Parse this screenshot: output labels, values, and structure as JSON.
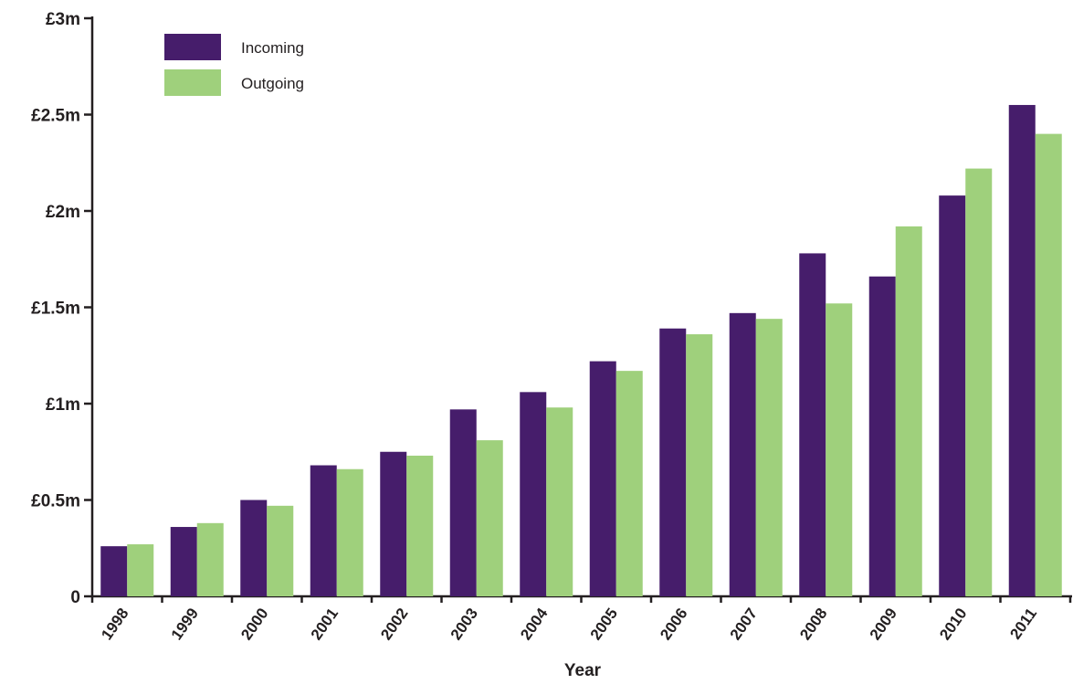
{
  "chart_data": {
    "type": "bar",
    "title": "",
    "xlabel": "Year",
    "ylabel": "",
    "categories": [
      "1998",
      "1999",
      "2000",
      "2001",
      "2002",
      "2003",
      "2004",
      "2005",
      "2006",
      "2007",
      "2008",
      "2009",
      "2010",
      "2011"
    ],
    "series": [
      {
        "name": "Incoming",
        "color": "#461d6b",
        "values": [
          0.26,
          0.36,
          0.5,
          0.68,
          0.75,
          0.97,
          1.06,
          1.22,
          1.39,
          1.47,
          1.78,
          1.66,
          2.08,
          2.55
        ]
      },
      {
        "name": "Outgoing",
        "color": "#9fd07c",
        "values": [
          0.27,
          0.38,
          0.47,
          0.66,
          0.73,
          0.81,
          0.98,
          1.17,
          1.36,
          1.44,
          1.52,
          1.92,
          2.22,
          2.4
        ]
      }
    ],
    "ylim": [
      0,
      3
    ],
    "yticks": [
      0,
      0.5,
      1,
      1.5,
      2,
      2.5,
      3
    ],
    "ytick_labels": [
      "0",
      "£0.5m",
      "£1m",
      "£1.5m",
      "£2m",
      "£2.5m",
      "£3m"
    ],
    "legend_position": "top-left",
    "grid": false
  }
}
